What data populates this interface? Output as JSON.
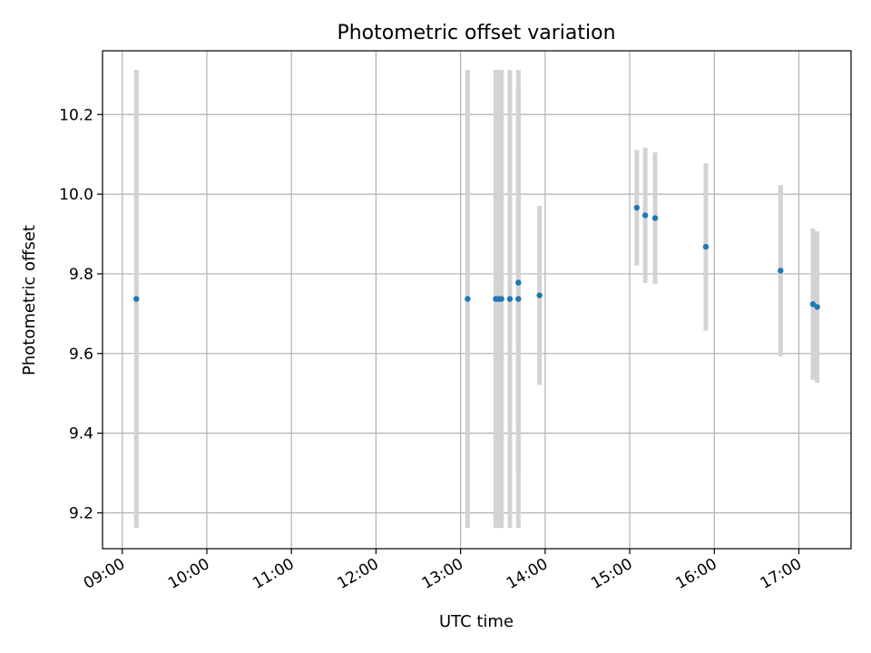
{
  "chart_data": {
    "type": "scatter",
    "title": "Photometric offset variation",
    "xlabel": "UTC time",
    "ylabel": "Photometric offset",
    "grid": true,
    "x_ticks": [
      "09:00",
      "10:00",
      "11:00",
      "12:00",
      "13:00",
      "14:00",
      "15:00",
      "16:00",
      "17:00"
    ],
    "y_ticks": [
      "9.2",
      "9.4",
      "9.6",
      "9.8",
      "10.0",
      "10.2"
    ],
    "xlim": [
      "08:46",
      "17:37"
    ],
    "ylim": [
      9.11,
      10.36
    ],
    "colors": {
      "point": "#1f77b4",
      "errorbar": "#d3d3d3",
      "grid": "#b0b0b0"
    },
    "points": [
      {
        "x": "09:10",
        "y": 9.737,
        "err": 0.575
      },
      {
        "x": "13:05",
        "y": 9.737,
        "err": 0.575
      },
      {
        "x": "13:25",
        "y": 9.737,
        "err": 0.575
      },
      {
        "x": "13:27",
        "y": 9.737,
        "err": 0.575
      },
      {
        "x": "13:29",
        "y": 9.737,
        "err": 0.575
      },
      {
        "x": "13:35",
        "y": 9.737,
        "err": 0.575
      },
      {
        "x": "13:41",
        "y": 9.737,
        "err": 0.575
      },
      {
        "x": "13:41",
        "y": 9.778,
        "err": 0.49
      },
      {
        "x": "13:56",
        "y": 9.746,
        "err": 0.225
      },
      {
        "x": "15:05",
        "y": 9.966,
        "err": 0.145
      },
      {
        "x": "15:11",
        "y": 9.947,
        "err": 0.17
      },
      {
        "x": "15:18",
        "y": 9.94,
        "err": 0.165
      },
      {
        "x": "15:54",
        "y": 9.868,
        "err": 0.21
      },
      {
        "x": "16:47",
        "y": 9.808,
        "err": 0.215
      },
      {
        "x": "17:10",
        "y": 9.724,
        "err": 0.19
      },
      {
        "x": "17:13",
        "y": 9.717,
        "err": 0.19
      }
    ]
  }
}
